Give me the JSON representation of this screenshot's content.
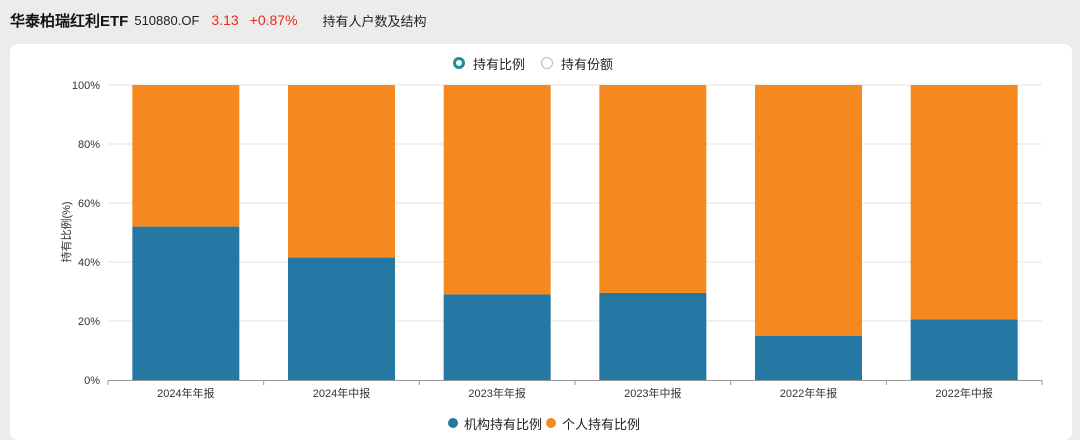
{
  "header": {
    "fund_name": "华泰柏瑞红利ETF",
    "fund_code": "510880.OF",
    "price": "3.13",
    "change": "+0.87%",
    "section_title": "持有人户数及结构"
  },
  "toggles": {
    "ratio_label": "持有比例",
    "shares_label": "持有份额",
    "selected": "ratio"
  },
  "colors": {
    "institution": "#2478a3",
    "individual": "#f5891f",
    "accent": "#1c8f9b",
    "price_up": "#e8291c"
  },
  "legend": {
    "institution": "机构持有比例",
    "individual": "个人持有比例"
  },
  "chart_data": {
    "type": "bar",
    "stacked": true,
    "ylabel": "持有比例(%)",
    "ylim": [
      0,
      100
    ],
    "yticks": [
      "0%",
      "20%",
      "40%",
      "60%",
      "80%",
      "100%"
    ],
    "categories": [
      "2024年年报",
      "2024年中报",
      "2023年年报",
      "2023年中报",
      "2022年年报",
      "2022年中报"
    ],
    "series": [
      {
        "name": "机构持有比例",
        "values": [
          52,
          41.5,
          29,
          29.5,
          15,
          20.5
        ]
      },
      {
        "name": "个人持有比例",
        "values": [
          48,
          58.5,
          71,
          70.5,
          85,
          79.5
        ]
      }
    ],
    "grid": true,
    "legend_position": "bottom"
  }
}
